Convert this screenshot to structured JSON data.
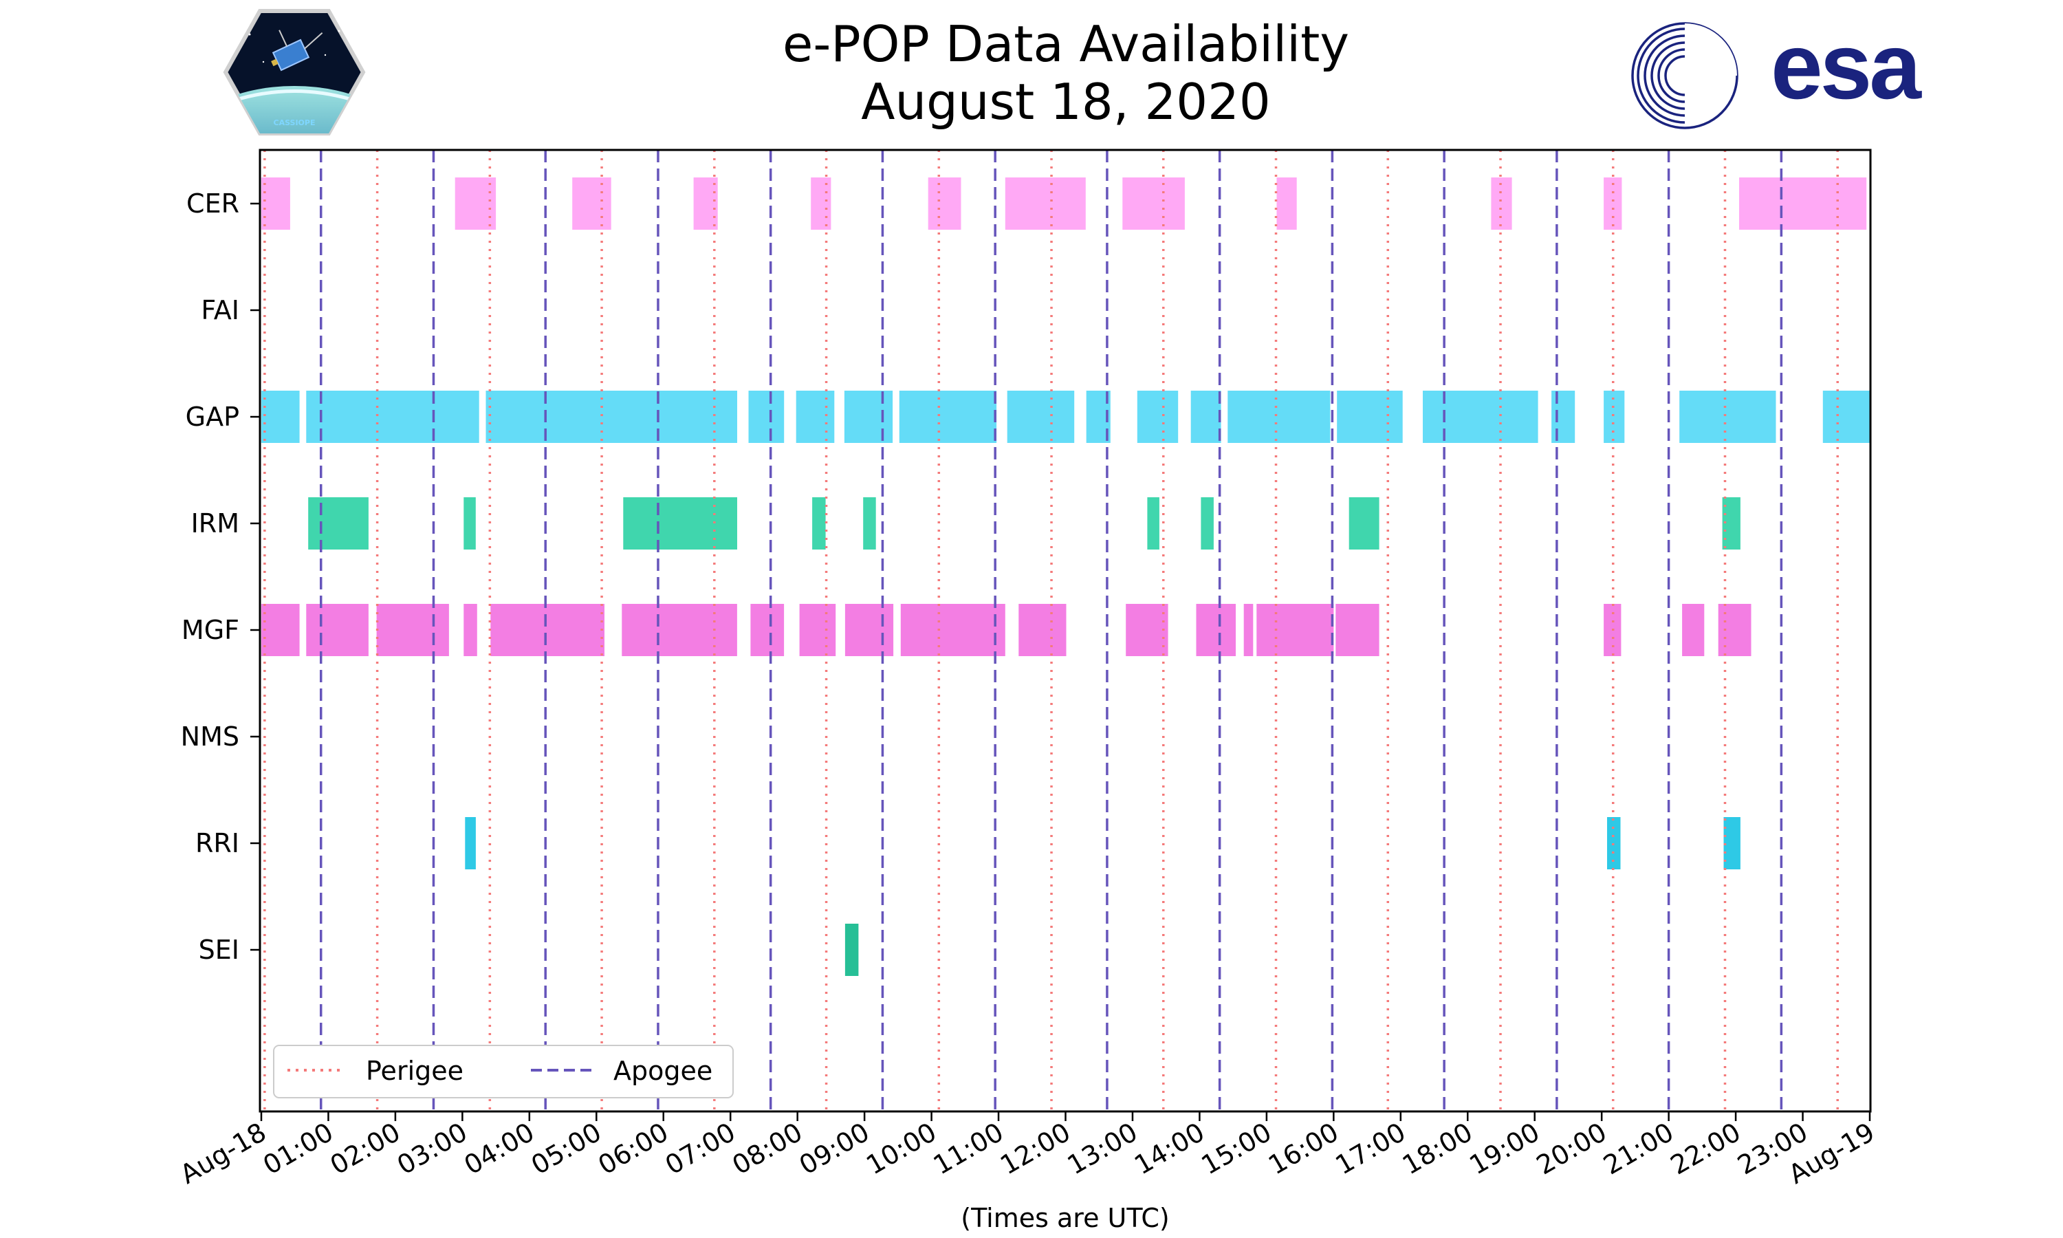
{
  "chart_data": {
    "type": "timeline",
    "title": "e-POP Data Availability",
    "subtitle": "August 18, 2020",
    "xlabel": "(Times are UTC)",
    "x_units": "hours UTC",
    "xlim": [
      0,
      24
    ],
    "x_ticks": [
      {
        "value": 0,
        "label": "Aug-18"
      },
      {
        "value": 1,
        "label": "01:00"
      },
      {
        "value": 2,
        "label": "02:00"
      },
      {
        "value": 3,
        "label": "03:00"
      },
      {
        "value": 4,
        "label": "04:00"
      },
      {
        "value": 5,
        "label": "05:00"
      },
      {
        "value": 6,
        "label": "06:00"
      },
      {
        "value": 7,
        "label": "07:00"
      },
      {
        "value": 8,
        "label": "08:00"
      },
      {
        "value": 9,
        "label": "09:00"
      },
      {
        "value": 10,
        "label": "10:00"
      },
      {
        "value": 11,
        "label": "11:00"
      },
      {
        "value": 12,
        "label": "12:00"
      },
      {
        "value": 13,
        "label": "13:00"
      },
      {
        "value": 14,
        "label": "14:00"
      },
      {
        "value": 15,
        "label": "15:00"
      },
      {
        "value": 16,
        "label": "16:00"
      },
      {
        "value": 17,
        "label": "17:00"
      },
      {
        "value": 18,
        "label": "18:00"
      },
      {
        "value": 19,
        "label": "19:00"
      },
      {
        "value": 20,
        "label": "20:00"
      },
      {
        "value": 21,
        "label": "21:00"
      },
      {
        "value": 22,
        "label": "22:00"
      },
      {
        "value": 23,
        "label": "23:00"
      },
      {
        "value": 24,
        "label": "Aug-19"
      }
    ],
    "instruments": [
      {
        "name": "CER",
        "color": "#ffa9f5",
        "intervals": [
          [
            0.0,
            0.43
          ],
          [
            2.89,
            3.5
          ],
          [
            4.64,
            5.22
          ],
          [
            6.45,
            6.81
          ],
          [
            8.2,
            8.5
          ],
          [
            9.95,
            10.44
          ],
          [
            11.1,
            12.3
          ],
          [
            12.85,
            13.78
          ],
          [
            15.15,
            15.45
          ],
          [
            18.35,
            18.66
          ],
          [
            20.03,
            20.3
          ],
          [
            22.05,
            23.95
          ]
        ]
      },
      {
        "name": "FAI",
        "color": "#ffa9f5",
        "intervals": []
      },
      {
        "name": "GAP",
        "color": "#64dcf7",
        "intervals": [
          [
            0.0,
            0.57
          ],
          [
            0.67,
            3.25
          ],
          [
            3.35,
            7.1
          ],
          [
            7.27,
            7.8
          ],
          [
            7.98,
            8.55
          ],
          [
            8.7,
            9.42
          ],
          [
            9.52,
            10.97
          ],
          [
            11.13,
            12.13
          ],
          [
            12.31,
            12.67
          ],
          [
            13.07,
            13.68
          ],
          [
            13.87,
            14.32
          ],
          [
            14.42,
            15.95
          ],
          [
            16.05,
            17.03
          ],
          [
            17.33,
            19.05
          ],
          [
            19.25,
            19.6
          ],
          [
            20.03,
            20.34
          ],
          [
            21.16,
            22.6
          ],
          [
            23.3,
            24.0
          ]
        ]
      },
      {
        "name": "IRM",
        "color": "#40d6ad",
        "intervals": [
          [
            0.7,
            1.6
          ],
          [
            3.02,
            3.2
          ],
          [
            5.4,
            7.1
          ],
          [
            8.22,
            8.42
          ],
          [
            8.98,
            9.17
          ],
          [
            13.22,
            13.4
          ],
          [
            14.02,
            14.21
          ],
          [
            16.23,
            16.68
          ],
          [
            21.8,
            22.07
          ]
        ]
      },
      {
        "name": "MGF",
        "color": "#f37ee3",
        "intervals": [
          [
            0.0,
            0.57
          ],
          [
            0.67,
            1.6
          ],
          [
            1.72,
            2.8
          ],
          [
            3.02,
            3.22
          ],
          [
            3.42,
            5.12
          ],
          [
            5.38,
            7.1
          ],
          [
            7.3,
            7.8
          ],
          [
            8.03,
            8.57
          ],
          [
            8.71,
            9.43
          ],
          [
            9.54,
            11.1
          ],
          [
            11.3,
            12.01
          ],
          [
            12.9,
            13.53
          ],
          [
            13.95,
            14.54
          ],
          [
            14.66,
            14.8
          ],
          [
            14.85,
            16.0
          ],
          [
            16.03,
            16.68
          ],
          [
            20.03,
            20.29
          ],
          [
            21.2,
            21.53
          ],
          [
            21.74,
            22.23
          ]
        ]
      },
      {
        "name": "NMS",
        "color": "#f37ee3",
        "intervals": []
      },
      {
        "name": "RRI",
        "color": "#2ec9e6",
        "intervals": [
          [
            3.04,
            3.2
          ],
          [
            20.08,
            20.28
          ],
          [
            21.82,
            22.07
          ]
        ]
      },
      {
        "name": "SEI",
        "color": "#26bf96",
        "intervals": [
          [
            8.71,
            8.91
          ]
        ]
      }
    ],
    "perigee_times": [
      0.05,
      1.73,
      3.41,
      5.08,
      6.76,
      8.43,
      10.11,
      11.79,
      13.46,
      15.14,
      16.81,
      18.49,
      20.17,
      21.84,
      23.52
    ],
    "apogee_times": [
      0.89,
      2.57,
      4.24,
      5.92,
      7.6,
      9.27,
      10.95,
      12.62,
      14.3,
      15.98,
      17.65,
      19.33,
      21.0,
      22.68
    ],
    "legend": {
      "position": "lower-left",
      "entries": [
        {
          "label": "Perigee",
          "style": "dotted",
          "color": "#f47a7a"
        },
        {
          "label": "Apogee",
          "style": "dashed",
          "color": "#6655bb"
        }
      ]
    }
  },
  "logos": {
    "cassiope": {
      "text": "CASSIOPE"
    },
    "esa": {
      "text": "esa",
      "color": "#1a237e"
    }
  }
}
